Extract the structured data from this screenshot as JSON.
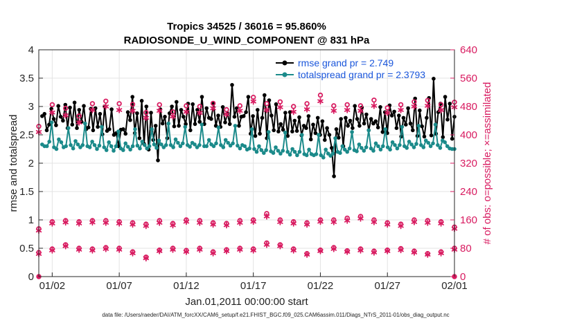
{
  "chart_data": {
    "type": "line",
    "title": "Tropics 34525 / 36016 = 95.860%",
    "subtitle": "RADIOSONDE_U_WIND_COMPONENT @ 831 hPa",
    "xlabel": "Jan.01,2011 00:00:00 start",
    "ylabel": "rmse and totalspread",
    "y2label": "# of obs: o=possible; ×=assimilated",
    "footnote": "data file: /Users/raeder/DAI/ATM_forcXX/CAM6_setup/f.e21.FHIST_BGC.f09_025.CAM6assim.011/Diags_NTrS_2011-01/obs_diag_output.nc",
    "xlim": [
      0,
      31
    ],
    "ylim": [
      0,
      4
    ],
    "y2lim": [
      0,
      640
    ],
    "x_ticks": [
      1,
      6,
      11,
      16,
      21,
      26,
      31
    ],
    "x_tick_labels": [
      "01/02",
      "01/07",
      "01/12",
      "01/17",
      "01/22",
      "01/27",
      "02/01"
    ],
    "y_ticks": [
      0,
      0.5,
      1,
      1.5,
      2,
      2.5,
      3,
      3.5,
      4
    ],
    "y_tick_labels": [
      "0",
      "0.5",
      "1",
      "1.5",
      "2",
      "2.5",
      "3",
      "3.5",
      "4"
    ],
    "y2_ticks": [
      0,
      80,
      160,
      240,
      320,
      400,
      480,
      560,
      640
    ],
    "y2_tick_labels": [
      "0",
      "80",
      "160",
      "240",
      "320",
      "400",
      "480",
      "560",
      "640"
    ],
    "legend": {
      "position": "top-right",
      "entries": [
        "rmse grand pr = 2.749",
        "totalspread grand pr = 2.3793"
      ]
    },
    "colors": {
      "rmse": "#000000",
      "spread": "#1b8a8a",
      "obs": "#d81b60",
      "legend_text": "#1a56db",
      "axis": "#262626",
      "grid": "#e3e3e3"
    },
    "series": [
      {
        "name": "rmse",
        "axis": "left",
        "values": [
          2.83,
          2.87,
          2.58,
          2.68,
          2.96,
          2.78,
          2.67,
          3.01,
          2.82,
          2.75,
          3.03,
          2.62,
          2.98,
          2.68,
          3.07,
          2.62,
          2.94,
          2.73,
          3.01,
          2.6,
          2.63,
          2.96,
          2.58,
          2.97,
          2.64,
          2.87,
          2.51,
          3.0,
          2.57,
          2.6,
          2.95,
          2.5,
          2.53,
          2.3,
          2.59,
          2.6,
          2.52,
          2.9,
          2.76,
          3.17,
          2.53,
          2.88,
          2.44,
          3.1,
          2.34,
          3.0,
          2.24,
          2.89,
          2.41,
          2.66,
          2.05,
          2.95,
          2.7,
          2.82,
          2.44,
          2.88,
          3.0,
          2.65,
          3.08,
          2.66,
          2.94,
          2.82,
          2.69,
          3.05,
          2.58,
          3.04,
          2.69,
          2.94,
          2.73,
          3.17,
          2.69,
          2.97,
          2.8,
          2.78,
          3.05,
          2.66,
          2.84,
          2.64,
          2.99,
          2.72,
          2.88,
          2.69,
          3.38,
          2.82,
          2.97,
          2.66,
          2.82,
          2.83,
          2.9,
          3.17,
          2.52,
          2.83,
          2.48,
          2.94,
          2.52,
          2.8,
          3.2,
          2.44,
          3.11,
          2.84,
          2.58,
          3.04,
          2.56,
          2.69,
          2.59,
          2.89,
          2.48,
          2.9,
          2.56,
          2.75,
          2.57,
          2.81,
          2.49,
          2.66,
          2.62,
          2.83,
          2.42,
          2.68,
          2.53,
          2.8,
          2.5,
          2.74,
          2.41,
          2.62,
          2.5,
          2.27,
          1.77,
          2.6,
          2.45,
          2.78,
          2.3,
          2.8,
          2.66,
          2.75,
          2.62,
          3.01,
          2.78,
          2.66,
          2.98,
          2.7,
          2.86,
          2.58,
          2.78,
          2.7,
          2.74,
          2.63,
          2.99,
          2.55,
          2.9,
          2.53,
          3.02,
          2.84,
          2.91,
          2.62,
          2.84,
          2.47,
          2.8,
          2.68,
          2.97,
          2.7,
          2.58,
          3.14,
          2.48,
          2.93,
          2.65,
          2.47,
          2.8,
          3.15,
          2.49,
          3.49,
          2.52,
          2.9,
          3.05,
          2.46,
          3.17,
          2.77,
          3.05,
          2.43,
          2.82
        ]
      },
      {
        "name": "totalspread",
        "axis": "left",
        "values": [
          2.33,
          2.3,
          2.3,
          2.38,
          2.72,
          2.28,
          2.25,
          2.42,
          2.37,
          2.28,
          2.3,
          2.62,
          2.32,
          2.26,
          2.39,
          2.33,
          2.28,
          2.32,
          2.7,
          2.3,
          2.28,
          2.38,
          2.32,
          2.25,
          2.31,
          2.64,
          2.28,
          2.23,
          2.37,
          2.3,
          2.22,
          2.3,
          2.56,
          2.26,
          2.23,
          2.35,
          2.29,
          2.24,
          2.3,
          2.6,
          2.31,
          2.26,
          2.38,
          2.32,
          2.26,
          2.3,
          2.6,
          2.33,
          2.27,
          2.4,
          2.33,
          2.28,
          2.32,
          2.7,
          2.32,
          2.28,
          2.42,
          2.36,
          2.3,
          2.35,
          2.64,
          2.32,
          2.29,
          2.36,
          2.33,
          2.28,
          2.32,
          2.68,
          2.3,
          2.3,
          2.41,
          2.33,
          2.3,
          2.35,
          2.63,
          2.32,
          2.28,
          2.41,
          2.36,
          2.31,
          2.35,
          2.66,
          2.31,
          2.26,
          2.32,
          2.3,
          2.24,
          2.26,
          2.6,
          2.25,
          2.2,
          2.3,
          2.23,
          2.18,
          2.23,
          2.55,
          2.21,
          2.18,
          2.28,
          2.22,
          2.17,
          2.22,
          2.54,
          2.2,
          2.15,
          2.25,
          2.2,
          2.14,
          2.2,
          2.5,
          2.16,
          2.14,
          2.24,
          2.16,
          2.14,
          2.16,
          2.5,
          2.14,
          2.1,
          2.24,
          2.17,
          2.13,
          2.17,
          2.44,
          2.2,
          2.18,
          2.3,
          2.24,
          2.2,
          2.26,
          2.55,
          2.23,
          2.21,
          2.33,
          2.27,
          2.22,
          2.28,
          2.58,
          2.26,
          2.22,
          2.35,
          2.3,
          2.24,
          2.3,
          2.6,
          2.28,
          2.24,
          2.37,
          2.32,
          2.26,
          2.32,
          2.64,
          2.3,
          2.27,
          2.38,
          2.33,
          2.28,
          2.34,
          2.66,
          2.32,
          2.28,
          2.4,
          2.36,
          2.3,
          2.35,
          2.68,
          2.32,
          2.27,
          2.4,
          2.37,
          2.3,
          2.26,
          2.25,
          2.25
        ]
      }
    ],
    "obs_counts": {
      "axis": "right",
      "x_start": 0,
      "x_step": 1,
      "high": {
        "possible": [
          424,
          485,
          475,
          453,
          488,
          495,
          488,
          486,
          463,
          485,
          465,
          482,
          480,
          489,
          471,
          482,
          506,
          488,
          493,
          480,
          488,
          512,
          482,
          485,
          482,
          498,
          476,
          485,
          493,
          497,
          485,
          492
        ],
        "assimilated": [
          408,
          463,
          455,
          435,
          470,
          480,
          470,
          468,
          448,
          468,
          452,
          465,
          462,
          475,
          458,
          468,
          494,
          470,
          478,
          465,
          472,
          495,
          468,
          470,
          468,
          482,
          462,
          470,
          480,
          482,
          470,
          478
        ]
      },
      "mid": {
        "possible": [
          135,
          155,
          158,
          155,
          158,
          158,
          155,
          152,
          148,
          158,
          150,
          160,
          158,
          152,
          150,
          158,
          160,
          178,
          160,
          155,
          152,
          160,
          160,
          165,
          170,
          160,
          152,
          148,
          160,
          158,
          155,
          140
        ],
        "assimilated": [
          130,
          150,
          153,
          150,
          153,
          152,
          150,
          147,
          143,
          152,
          145,
          155,
          152,
          147,
          145,
          152,
          155,
          170,
          154,
          150,
          147,
          155,
          154,
          158,
          164,
          154,
          147,
          143,
          154,
          152,
          150,
          135
        ]
      },
      "low": {
        "possible": [
          68,
          78,
          90,
          80,
          78,
          82,
          80,
          70,
          55,
          75,
          80,
          74,
          80,
          70,
          76,
          80,
          78,
          95,
          90,
          78,
          65,
          75,
          82,
          73,
          78,
          72,
          75,
          79,
          72,
          65,
          70,
          80
        ],
        "assimilated": [
          64,
          74,
          86,
          76,
          74,
          78,
          76,
          66,
          52,
          72,
          76,
          70,
          76,
          66,
          72,
          76,
          74,
          90,
          86,
          74,
          62,
          72,
          78,
          70,
          74,
          68,
          72,
          75,
          68,
          62,
          66,
          76
        ]
      },
      "zero": {
        "possible": [
          0,
          31
        ]
      }
    }
  }
}
